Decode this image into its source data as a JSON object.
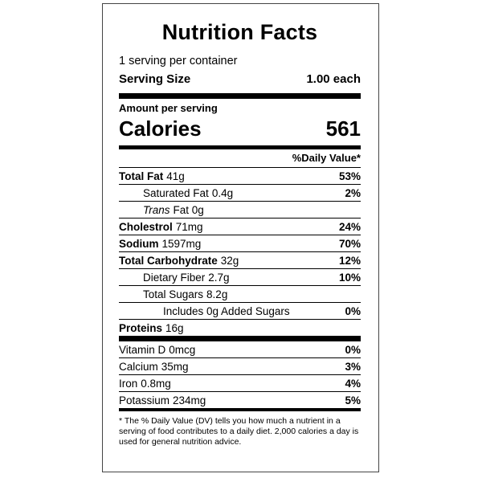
{
  "title": "Nutrition Facts",
  "servings_per_container": "1 serving per container",
  "serving_size": {
    "label": "Serving Size",
    "value": "1.00 each"
  },
  "amount_per_serving": "Amount per serving",
  "calories": {
    "label": "Calories",
    "value": "561"
  },
  "daily_value_header": "%Daily Value*",
  "nutrients": [
    {
      "label": "Total Fat",
      "amount": "41g",
      "dv": "53%"
    },
    {
      "label": "Saturated Fat",
      "amount": "0.4g",
      "dv": "2%"
    },
    {
      "label": "Trans",
      "amount": "Fat 0g",
      "dv": ""
    },
    {
      "label": "Cholestrol",
      "amount": "71mg",
      "dv": "24%"
    },
    {
      "label": "Sodium",
      "amount": "1597mg",
      "dv": "70%"
    },
    {
      "label": "Total Carbohydrate",
      "amount": "32g",
      "dv": "12%"
    },
    {
      "label": "Dietary Fiber",
      "amount": "2.7g",
      "dv": "10%"
    },
    {
      "label": "Total Sugars",
      "amount": "8.2g",
      "dv": ""
    },
    {
      "label": "Includes 0g Added Sugars",
      "amount": "",
      "dv": "0%"
    },
    {
      "label": "Proteins",
      "amount": "16g",
      "dv": ""
    }
  ],
  "vitamins": [
    {
      "label": "Vitamin D",
      "amount": "0mcg",
      "dv": "0%"
    },
    {
      "label": "Calcium",
      "amount": "35mg",
      "dv": "3%"
    },
    {
      "label": "Iron",
      "amount": "0.8mg",
      "dv": "4%"
    },
    {
      "label": "Potassium",
      "amount": "234mg",
      "dv": "5%"
    }
  ],
  "footnote": "* The % Daily Value (DV) tells you how much a nutrient in a serving of food contributes to a daily diet. 2,000 calories a day is used for general nutrition advice."
}
